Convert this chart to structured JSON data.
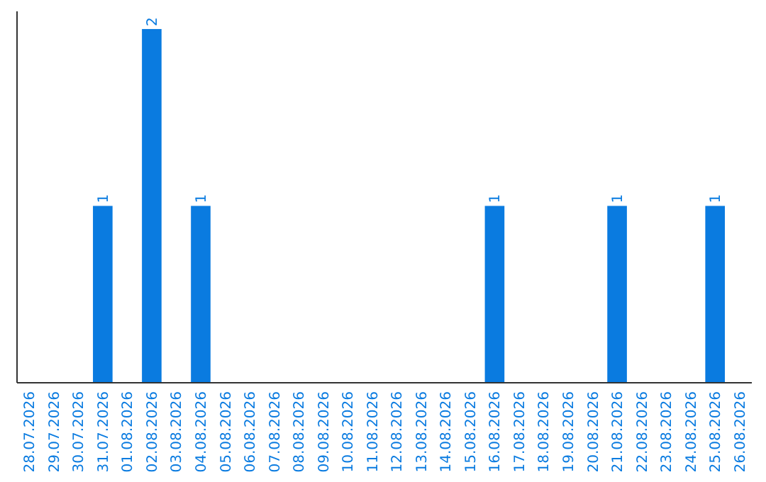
{
  "chart_data": {
    "type": "bar",
    "categories": [
      "28.07.2026",
      "29.07.2026",
      "30.07.2026",
      "31.07.2026",
      "01.08.2026",
      "02.08.2026",
      "03.08.2026",
      "04.08.2026",
      "05.08.2026",
      "06.08.2026",
      "07.08.2026",
      "08.08.2026",
      "09.08.2026",
      "10.08.2026",
      "11.08.2026",
      "12.08.2026",
      "13.08.2026",
      "14.08.2026",
      "15.08.2026",
      "16.08.2026",
      "17.08.2026",
      "18.08.2026",
      "19.08.2026",
      "20.08.2026",
      "21.08.2026",
      "22.08.2026",
      "23.08.2026",
      "24.08.2026",
      "25.08.2026",
      "26.08.2026"
    ],
    "values": [
      0,
      0,
      0,
      1,
      0,
      2,
      0,
      1,
      0,
      0,
      0,
      0,
      0,
      0,
      0,
      0,
      0,
      0,
      0,
      1,
      0,
      0,
      0,
      0,
      1,
      0,
      0,
      0,
      1,
      0
    ],
    "value_labels": [
      null,
      null,
      null,
      "1",
      null,
      "2",
      null,
      "1",
      null,
      null,
      null,
      null,
      null,
      null,
      null,
      null,
      null,
      null,
      null,
      "1",
      null,
      null,
      null,
      null,
      "1",
      null,
      null,
      null,
      "1",
      null
    ],
    "color": "#0a7be0"
  }
}
